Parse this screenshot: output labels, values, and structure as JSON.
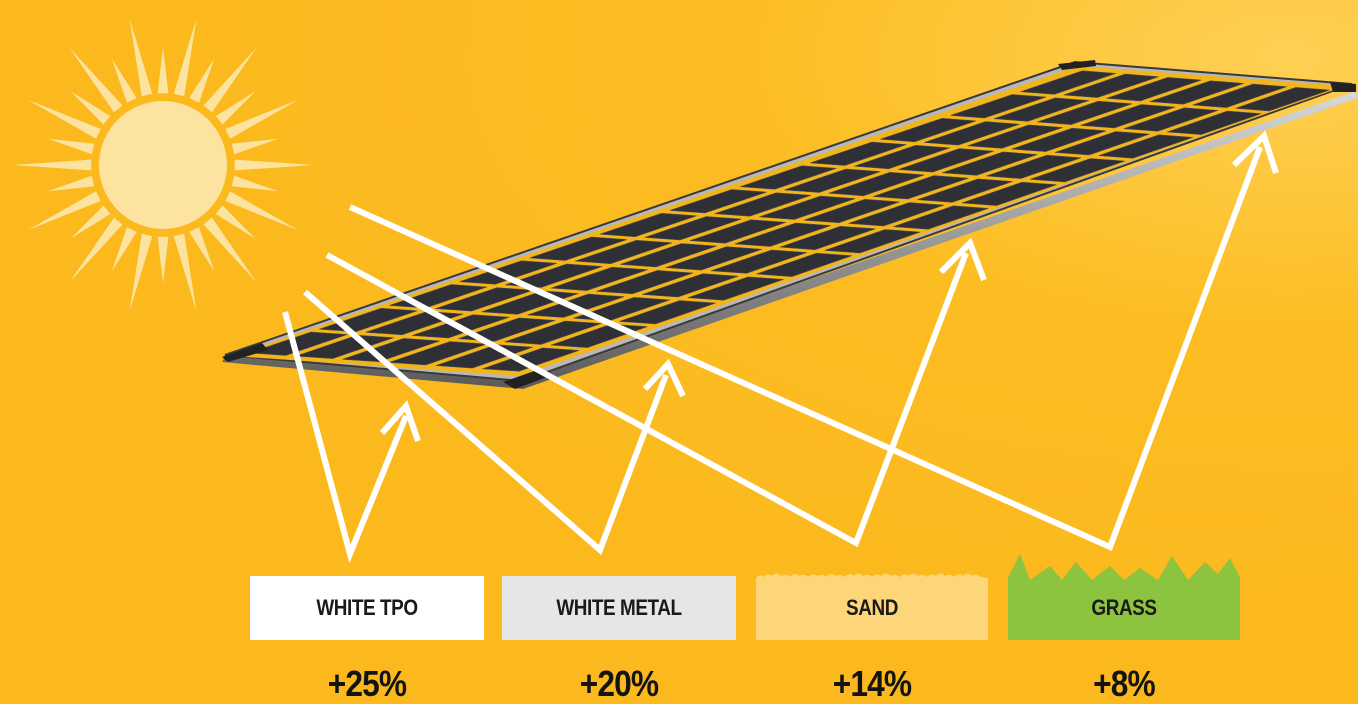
{
  "colors": {
    "background": "#fbb91e",
    "sun": "#fde3a0",
    "ray": "#ffffff",
    "panel_cell": "#2f3035",
    "white_tpo": "#ffffff",
    "white_metal": "#e6e6e6",
    "sand": "#fcd679",
    "grass": "#8cc33f"
  },
  "surfaces": [
    {
      "label": "WHITE TPO",
      "gain": "+25%",
      "color": "#ffffff"
    },
    {
      "label": "WHITE METAL",
      "gain": "+20%",
      "color": "#e6e6e6"
    },
    {
      "label": "SAND",
      "gain": "+14%",
      "color": "#fcd679"
    },
    {
      "label": "GRASS",
      "gain": "+8%",
      "color": "#8cc33f"
    }
  ]
}
